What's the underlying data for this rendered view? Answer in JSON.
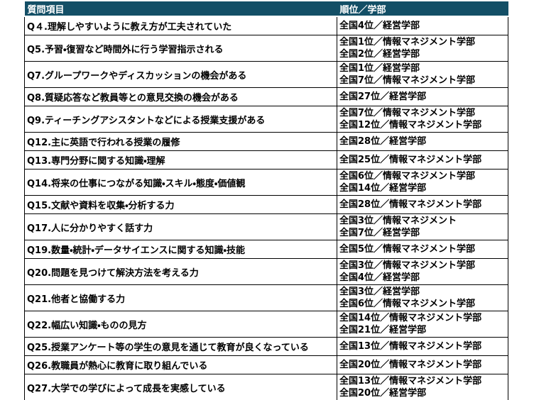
{
  "colors": {
    "header_bg": "#134F66",
    "header_text": "#FFFFFF",
    "body_text": "#000000",
    "border": "#000000",
    "page_bg": "#FFFFFF"
  },
  "header": {
    "question_col": "質問項目",
    "rank_col": "順位／学部"
  },
  "rows": [
    {
      "question": "Q４.理解しやすいように教え方が工夫されていた",
      "ranks": [
        "全国4位／経営学部"
      ]
    },
    {
      "question": "Q5.予習・復習など時間外に行う学習指示される",
      "ranks": [
        "全国1位／情報マネジメント学部",
        "全国2位／経営学部"
      ]
    },
    {
      "question": "Q7.グループワークやディスカッションの機会がある",
      "ranks": [
        "全国1位／経営学部",
        "全国7位／情報マネジメント学部"
      ]
    },
    {
      "question": "Q8.質疑応答など教員等との意見交換の機会がある",
      "ranks": [
        "全国27位／経営学部"
      ]
    },
    {
      "question": "Q9.ティーチングアシスタントなどによる授業支援がある",
      "ranks": [
        "全国7位／情報マネジメント学部",
        "全国12位／情報マネジメント学部"
      ]
    },
    {
      "question": "Q12.主に英語で行われる授業の履修",
      "ranks": [
        "全国28位／経営学部"
      ]
    },
    {
      "question": "Q13.専門分野に関する知識・理解",
      "ranks": [
        "全国25位／情報マネジメント学部"
      ]
    },
    {
      "question": "Q14.将来の仕事につながる知識・スキル・態度・価値観",
      "ranks": [
        "全国6位／情報マネジメント学部",
        "全国14位／経営学部"
      ]
    },
    {
      "question": "Q15.文献や資料を収集・分析する力",
      "ranks": [
        "全国28位／情報マネジメント学部"
      ]
    },
    {
      "question": "Q17.人に分かりやすく話す力",
      "ranks": [
        "全国3位／情報マネジメント",
        "全国7位／経営学部"
      ]
    },
    {
      "question": "Q19.数量・統計・データサイエンスに関する知識・技能",
      "ranks": [
        "全国5位／情報マネジメント学部"
      ]
    },
    {
      "question": "Q20.問題を見つけて解決方法を考える力",
      "ranks": [
        "全国3位／情報マネジメント学部",
        "全国4位／経営学部"
      ]
    },
    {
      "question": "Q21.他者と協働する力",
      "ranks": [
        "全国3位／経営学部",
        "全国6位／情報マネジメント学部"
      ]
    },
    {
      "question": "Q22.幅広い知識・ものの見方",
      "ranks": [
        "全国14位／情報マネジメント学部",
        "全国21位／経営学部"
      ]
    },
    {
      "question": "Q25.授業アンケート等の学生の意見を通じて教育が良くなっている",
      "ranks": [
        "全国13位／情報マネジメント学部"
      ]
    },
    {
      "question": "Q26.教職員が熱心に教育に取り組んでいる",
      "ranks": [
        "全国20位／情報マネジメント学部"
      ]
    },
    {
      "question": "Q27.大学での学びによって成長を実感している",
      "ranks": [
        "全国13位／情報マネジメント学部",
        "全国20位／経営学部"
      ]
    }
  ]
}
